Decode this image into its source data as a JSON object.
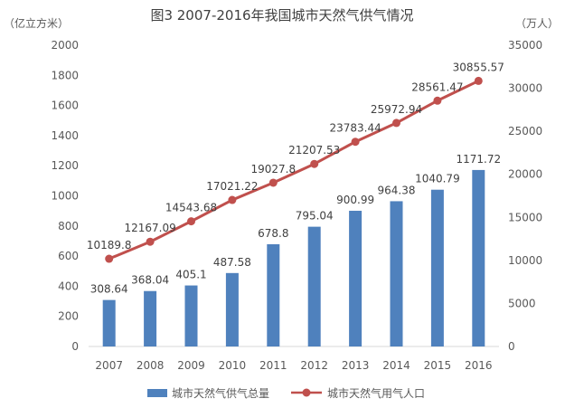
{
  "chart_data": {
    "type": "bar+line",
    "title": "图3  2007-2016年我国城市天然气供气情况",
    "categories": [
      "2007",
      "2008",
      "2009",
      "2010",
      "2011",
      "2012",
      "2013",
      "2014",
      "2015",
      "2016"
    ],
    "left_axis": {
      "unit_label": "（亿立方米）",
      "range": [
        0,
        2000
      ],
      "ticks": [
        0,
        200,
        400,
        600,
        800,
        1000,
        1200,
        1400,
        1600,
        1800,
        2000
      ]
    },
    "right_axis": {
      "unit_label": "（万人）",
      "range": [
        0,
        35000
      ],
      "ticks": [
        0,
        5000,
        10000,
        15000,
        20000,
        25000,
        30000,
        35000
      ]
    },
    "series": [
      {
        "name": "城市天然气供气总量",
        "type": "bar",
        "axis": "left",
        "color": "#4F81BD",
        "values": [
          308.64,
          368.04,
          405.1,
          487.58,
          678.8,
          795.04,
          900.99,
          964.38,
          1040.79,
          1171.72
        ],
        "labels": [
          "308.64",
          "368.04",
          "405.1",
          "487.58",
          "678.8",
          "795.04",
          "900.99",
          "964.38",
          "1040.79",
          "1171.72"
        ]
      },
      {
        "name": "城市天然气用气人口",
        "type": "line",
        "axis": "right",
        "color": "#C0504D",
        "values": [
          10189.8,
          12167.09,
          14543.68,
          17021.22,
          19027.8,
          21207.53,
          23783.44,
          25972.94,
          28561.47,
          30855.57
        ],
        "labels": [
          "10189.8",
          "12167.09",
          "14543.68",
          "17021.22",
          "19027.8",
          "21207.53",
          "23783.44",
          "25972.94",
          "28561.47",
          "30855.57"
        ]
      }
    ],
    "legend_position": "bottom"
  }
}
